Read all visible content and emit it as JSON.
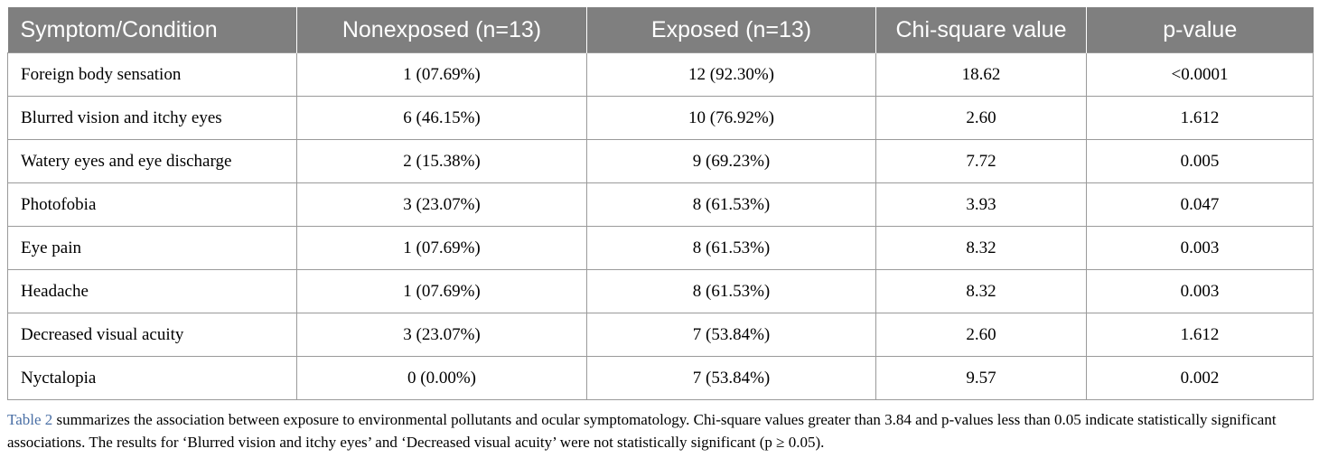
{
  "table": {
    "headers": [
      "Symptom/Condition",
      "Nonexposed (n=13)",
      "Exposed (n=13)",
      "Chi-square value",
      "p-value"
    ],
    "rows": [
      [
        "Foreign body sensation",
        "1 (07.69%)",
        "12 (92.30%)",
        "18.62",
        "<0.0001"
      ],
      [
        "Blurred vision and itchy eyes",
        "6 (46.15%)",
        "10 (76.92%)",
        "2.60",
        "1.612"
      ],
      [
        "Watery eyes and eye discharge",
        "2 (15.38%)",
        "9 (69.23%)",
        "7.72",
        "0.005"
      ],
      [
        "Photofobia",
        "3 (23.07%)",
        "8 (61.53%)",
        "3.93",
        "0.047"
      ],
      [
        "Eye pain",
        "1 (07.69%)",
        "8 (61.53%)",
        "8.32",
        "0.003"
      ],
      [
        "Headache",
        "1 (07.69%)",
        "8 (61.53%)",
        "8.32",
        "0.003"
      ],
      [
        "Decreased visual acuity",
        "3 (23.07%)",
        "7 (53.84%)",
        "2.60",
        "1.612"
      ],
      [
        "Nyctalopia",
        "0 (0.00%)",
        "7 (53.84%)",
        "9.57",
        "0.002"
      ]
    ]
  },
  "caption": {
    "ref": "Table 2",
    "text": " summarizes the association between exposure to environmental pollutants and ocular symptomatology. Chi-square values greater than 3.84 and p-values less than 0.05 indicate statistically significant associations. The results for ‘Blurred vision and itchy eyes’ and ‘Decreased visual acuity’ were not statistically significant (p ≥ 0.05)."
  },
  "colors": {
    "header_bg": "#7f7f7f",
    "header_text": "#ffffff",
    "border": "#9a9a9a",
    "link": "#4a6fa5"
  }
}
